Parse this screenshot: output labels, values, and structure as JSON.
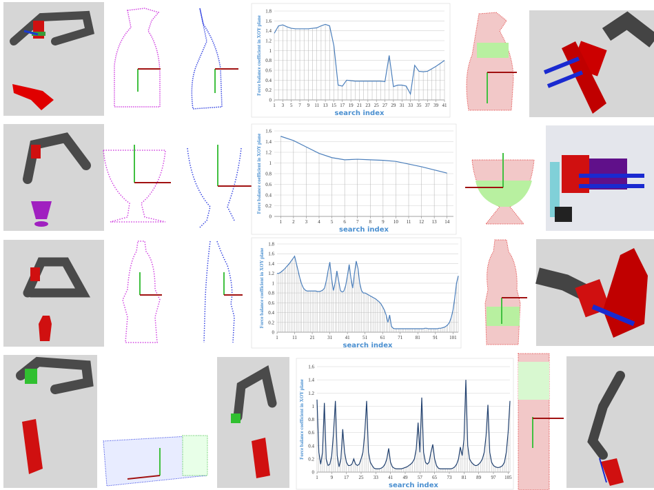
{
  "chart_data": [
    {
      "type": "line",
      "y_label": "Force balance coefficient in XOY plane",
      "x_label": "search index",
      "color": "#4a7ebb",
      "x": [
        1,
        2,
        3,
        4,
        5,
        6,
        7,
        8,
        9,
        10,
        11,
        12,
        13,
        14,
        15,
        16,
        17,
        18,
        19,
        20,
        21,
        22,
        23,
        24,
        25,
        26,
        27,
        28,
        29,
        30,
        31,
        32,
        33,
        34,
        35,
        36,
        37,
        38,
        39,
        40,
        41
      ],
      "values": [
        1.35,
        1.5,
        1.52,
        1.48,
        1.45,
        1.44,
        1.44,
        1.44,
        1.44,
        1.45,
        1.46,
        1.5,
        1.53,
        1.5,
        1.1,
        0.3,
        0.28,
        0.4,
        0.39,
        0.38,
        0.38,
        0.38,
        0.38,
        0.38,
        0.38,
        0.38,
        0.37,
        0.9,
        0.27,
        0.3,
        0.3,
        0.28,
        0.12,
        0.7,
        0.58,
        0.57,
        0.58,
        0.63,
        0.68,
        0.74,
        0.8
      ],
      "xlim": [
        1,
        41
      ],
      "xticks": [
        1,
        3,
        5,
        7,
        9,
        11,
        13,
        15,
        17,
        19,
        21,
        23,
        25,
        27,
        29,
        31,
        33,
        35,
        37,
        39,
        41
      ],
      "ylim": [
        0,
        1.8
      ],
      "yticks": [
        0,
        0.2,
        0.4,
        0.6,
        0.8,
        1,
        1.2,
        1.4,
        1.6,
        1.8
      ]
    },
    {
      "type": "line",
      "y_label": "Force balance coefficient in XOY plane",
      "x_label": "search index",
      "color": "#4a7ebb",
      "x": [
        1,
        2,
        3,
        4,
        5,
        6,
        7,
        8,
        9,
        10,
        11,
        12,
        13,
        14
      ],
      "values": [
        1.5,
        1.42,
        1.3,
        1.18,
        1.1,
        1.06,
        1.07,
        1.06,
        1.05,
        1.03,
        0.98,
        0.93,
        0.87,
        0.81
      ],
      "xlim": [
        0.5,
        14.5
      ],
      "xticks": [
        1,
        2,
        3,
        4,
        5,
        6,
        7,
        8,
        9,
        10,
        11,
        12,
        13,
        14
      ],
      "ylim": [
        0,
        1.6
      ],
      "yticks": [
        0,
        0.2,
        0.4,
        0.6,
        0.8,
        1,
        1.2,
        1.4,
        1.6
      ]
    },
    {
      "type": "line",
      "y_label": "Force balance coefficient in XOY plane",
      "x_label": "search index",
      "color": "#4a7ebb",
      "x": [
        1,
        2,
        3,
        4,
        5,
        6,
        7,
        8,
        9,
        10,
        11,
        12,
        13,
        14,
        15,
        16,
        17,
        18,
        19,
        20,
        21,
        22,
        23,
        24,
        25,
        26,
        27,
        28,
        29,
        30,
        31,
        32,
        33,
        34,
        35,
        36,
        37,
        38,
        39,
        40,
        41,
        42,
        43,
        44,
        45,
        46,
        47,
        48,
        49,
        50,
        51,
        52,
        53,
        54,
        55,
        56,
        57,
        58,
        59,
        60,
        61,
        62,
        63,
        64,
        65,
        66,
        67,
        68,
        69,
        70,
        71,
        72,
        73,
        74,
        75,
        76,
        77,
        78,
        79,
        80,
        81,
        82,
        83,
        84,
        85,
        86,
        87,
        88,
        89,
        90,
        91,
        92,
        93,
        94,
        95,
        96,
        97,
        98,
        99,
        100,
        101,
        102,
        103,
        104
      ],
      "values": [
        1.2,
        1.2,
        1.22,
        1.25,
        1.28,
        1.32,
        1.36,
        1.4,
        1.45,
        1.5,
        1.55,
        1.4,
        1.25,
        1.1,
        0.98,
        0.9,
        0.86,
        0.84,
        0.84,
        0.84,
        0.84,
        0.84,
        0.84,
        0.83,
        0.83,
        0.84,
        0.86,
        0.9,
        1.05,
        1.25,
        1.43,
        1.1,
        0.85,
        1,
        1.25,
        1.05,
        0.85,
        0.82,
        0.84,
        0.95,
        1.15,
        1.38,
        1.1,
        0.9,
        1.2,
        1.45,
        1.3,
        1,
        0.85,
        0.8,
        0.8,
        0.78,
        0.76,
        0.74,
        0.72,
        0.7,
        0.68,
        0.65,
        0.62,
        0.58,
        0.52,
        0.45,
        0.35,
        0.2,
        0.35,
        0.12,
        0.08,
        0.07,
        0.07,
        0.07,
        0.07,
        0.07,
        0.07,
        0.07,
        0.07,
        0.07,
        0.07,
        0.07,
        0.07,
        0.07,
        0.07,
        0.07,
        0.07,
        0.07,
        0.08,
        0.08,
        0.07,
        0.07,
        0.07,
        0.07,
        0.07,
        0.07,
        0.08,
        0.08,
        0.09,
        0.1,
        0.12,
        0.15,
        0.2,
        0.3,
        0.45,
        0.7,
        1,
        1.15
      ],
      "xlim": [
        1,
        104
      ],
      "xticks": [
        1,
        11,
        21,
        31,
        41,
        51,
        61,
        71,
        81,
        91,
        101
      ],
      "ylim": [
        0,
        1.8
      ],
      "yticks": [
        0,
        0.2,
        0.4,
        0.6,
        0.8,
        1,
        1.2,
        1.4,
        1.6,
        1.8
      ]
    },
    {
      "type": "line",
      "y_label": "Force balance coefficient in XOY plane",
      "x_label": "search index",
      "color": "#1f3f6e",
      "x": [
        1,
        2,
        3,
        4,
        5,
        6,
        7,
        8,
        9,
        10,
        11,
        12,
        13,
        14,
        15,
        16,
        17,
        18,
        19,
        20,
        21,
        22,
        23,
        24,
        25,
        26,
        27,
        28,
        29,
        30,
        31,
        32,
        33,
        34,
        35,
        36,
        37,
        38,
        39,
        40,
        41,
        42,
        43,
        44,
        45,
        46,
        47,
        48,
        49,
        50,
        51,
        52,
        53,
        54,
        55,
        56,
        57,
        58,
        59,
        60,
        61,
        62,
        63,
        64,
        65,
        66,
        67,
        68,
        69,
        70,
        71,
        72,
        73,
        74,
        75,
        76,
        77,
        78,
        79,
        80,
        81,
        82,
        83,
        84,
        85,
        86,
        87,
        88,
        89,
        90,
        91,
        92,
        93,
        94,
        95,
        96,
        97,
        98,
        99,
        100,
        101,
        102,
        103,
        104,
        105,
        106
      ],
      "values": [
        1.1,
        0.3,
        0.12,
        0.3,
        1.05,
        0.2,
        0.1,
        0.12,
        0.25,
        0.6,
        1.08,
        0.25,
        0.08,
        0.2,
        0.65,
        0.3,
        0.15,
        0.1,
        0.1,
        0.12,
        0.2,
        0.12,
        0.1,
        0.12,
        0.2,
        0.3,
        0.6,
        1.08,
        0.3,
        0.15,
        0.1,
        0.06,
        0.05,
        0.05,
        0.05,
        0.06,
        0.08,
        0.12,
        0.2,
        0.36,
        0.15,
        0.08,
        0.06,
        0.05,
        0.05,
        0.05,
        0.05,
        0.06,
        0.07,
        0.08,
        0.1,
        0.12,
        0.15,
        0.2,
        0.35,
        0.75,
        0.3,
        1.13,
        0.3,
        0.15,
        0.12,
        0.15,
        0.3,
        0.42,
        0.2,
        0.1,
        0.06,
        0.05,
        0.05,
        0.05,
        0.05,
        0.05,
        0.05,
        0.05,
        0.06,
        0.08,
        0.12,
        0.2,
        0.38,
        0.25,
        0.5,
        1.4,
        0.4,
        0.2,
        0.15,
        0.12,
        0.1,
        0.1,
        0.12,
        0.15,
        0.2,
        0.3,
        0.55,
        1.02,
        0.3,
        0.15,
        0.1,
        0.08,
        0.07,
        0.07,
        0.08,
        0.1,
        0.15,
        0.3,
        0.6,
        1.08
      ],
      "xlim": [
        1,
        106
      ],
      "xticks": [
        1,
        9,
        17,
        25,
        33,
        41,
        49,
        57,
        65,
        73,
        81,
        89,
        97,
        105
      ],
      "ylim": [
        0,
        1.6
      ],
      "yticks": [
        0,
        0.2,
        0.4,
        0.6,
        0.8,
        1,
        1.2,
        1.4,
        1.6
      ]
    }
  ]
}
